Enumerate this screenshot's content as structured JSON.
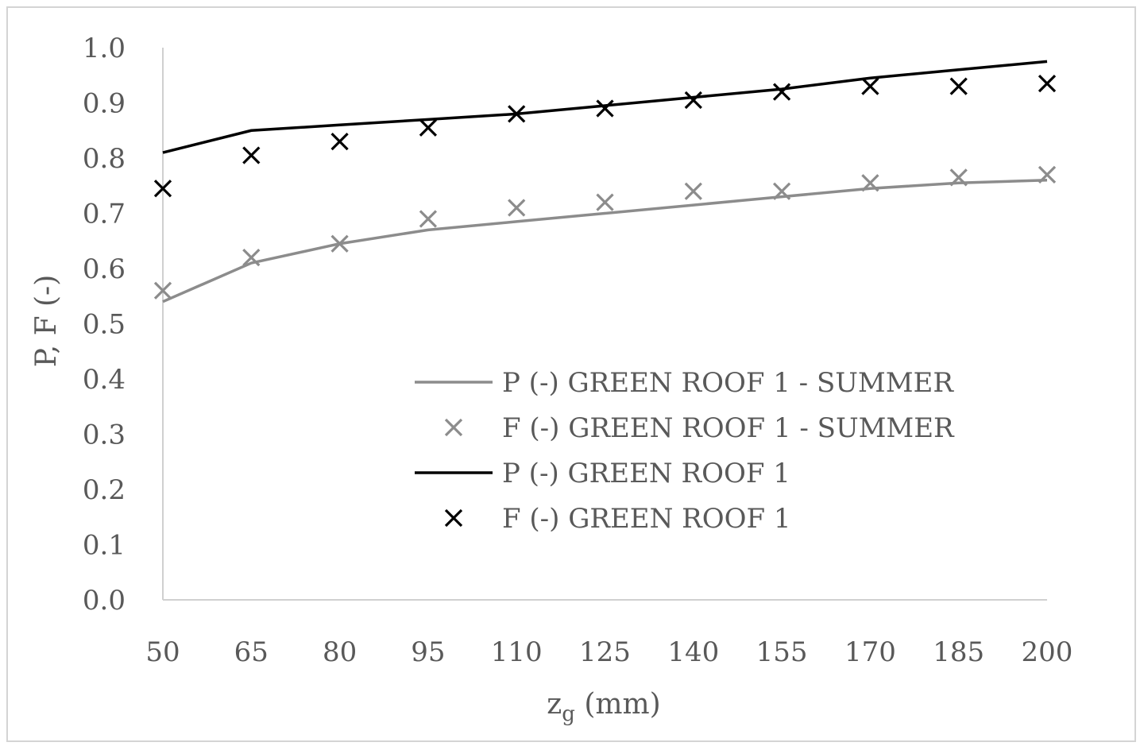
{
  "chart_data": {
    "type": "line",
    "title": "",
    "xlabel": {
      "main": "z",
      "sub": "g",
      "unit": " (mm)"
    },
    "ylabel": "P, F (-)",
    "x": [
      50,
      65,
      80,
      95,
      110,
      125,
      140,
      155,
      170,
      185,
      200
    ],
    "x_tick_labels": [
      "50",
      "65",
      "80",
      "95",
      "110",
      "125",
      "140",
      "155",
      "170",
      "185",
      "200"
    ],
    "ylim": [
      0,
      1
    ],
    "y_ticks": [
      0,
      0.1,
      0.2,
      0.3,
      0.4,
      0.5,
      0.6,
      0.7,
      0.8,
      0.9,
      1.0
    ],
    "y_tick_labels": [
      "0.0",
      "0.1",
      "0.2",
      "0.3",
      "0.4",
      "0.5",
      "0.6",
      "0.7",
      "0.8",
      "0.9",
      "1.0"
    ],
    "grid": false,
    "legend_position": "lower-right",
    "series": [
      {
        "name": "P (-) GREEN ROOF 1 - SUMMER",
        "kind": "line",
        "color": "#8c8c8c",
        "values": [
          0.54,
          0.61,
          0.645,
          0.67,
          0.685,
          0.7,
          0.715,
          0.73,
          0.745,
          0.755,
          0.76
        ]
      },
      {
        "name": "F (-) GREEN ROOF 1 - SUMMER",
        "kind": "marker-x",
        "color": "#8c8c8c",
        "values": [
          0.56,
          0.62,
          0.645,
          0.69,
          0.71,
          0.72,
          0.74,
          0.74,
          0.755,
          0.765,
          0.77
        ]
      },
      {
        "name": "P (-) GREEN ROOF 1",
        "kind": "line",
        "color": "#000000",
        "values": [
          0.81,
          0.85,
          0.86,
          0.87,
          0.88,
          0.895,
          0.91,
          0.925,
          0.945,
          0.96,
          0.975
        ]
      },
      {
        "name": "F (-) GREEN ROOF 1",
        "kind": "marker-x",
        "color": "#000000",
        "values": [
          0.745,
          0.805,
          0.83,
          0.855,
          0.88,
          0.89,
          0.905,
          0.92,
          0.93,
          0.93,
          0.935
        ]
      }
    ]
  }
}
